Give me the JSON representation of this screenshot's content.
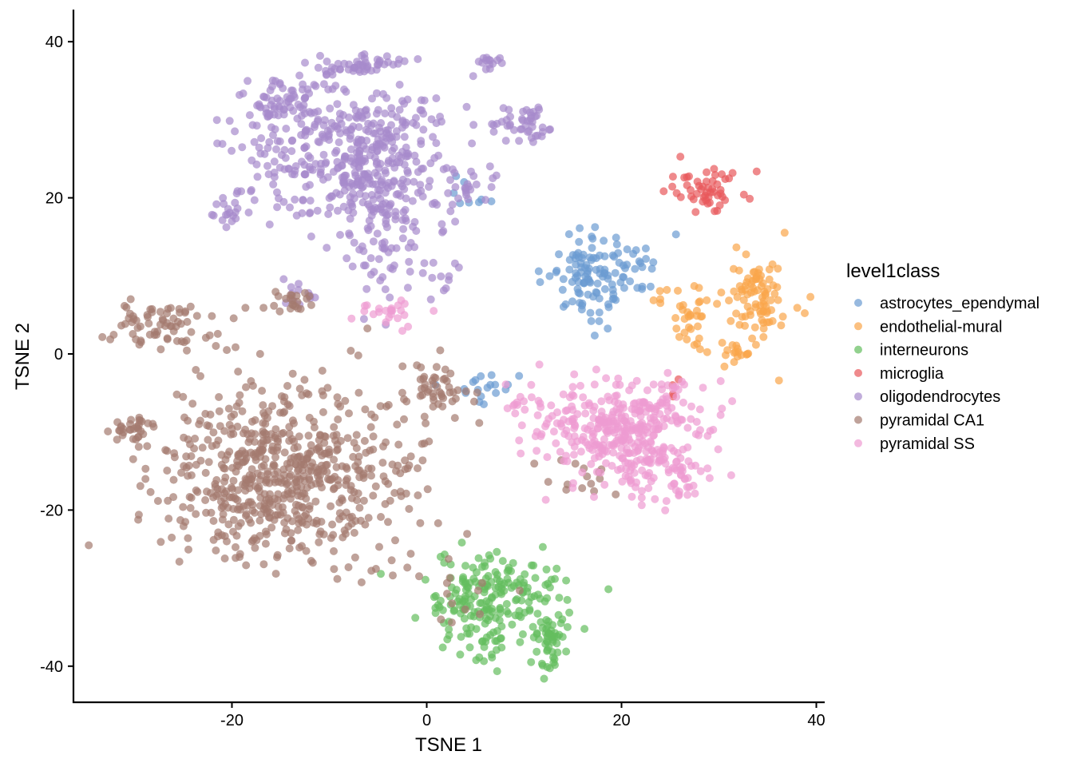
{
  "chart_data": {
    "type": "scatter",
    "xlabel": "TSNE 1",
    "ylabel": "TSNE 2",
    "xlim": [
      -36.5,
      40.5
    ],
    "ylim": [
      -44.5,
      44
    ],
    "x_ticks": [
      -20,
      0,
      20,
      40
    ],
    "y_ticks": [
      -40,
      -20,
      0,
      20,
      40
    ],
    "grid": false,
    "legend": {
      "title": "level1class",
      "placement": "right",
      "entries": [
        "astrocytes_ependymal",
        "endothelial-mural",
        "interneurons",
        "microglia",
        "oligodendrocytes",
        "pyramidal CA1",
        "pyramidal SS"
      ]
    },
    "colors": {
      "astrocytes_ependymal": "#6b9bd1",
      "endothelial-mural": "#f9a54a",
      "interneurons": "#64bd5e",
      "microglia": "#e8595b",
      "oligodendrocytes": "#a78acc",
      "pyramidal CA1": "#a47b6f",
      "pyramidal SS": "#ee9bd2"
    },
    "point_alpha": 0.7,
    "series": [
      {
        "name": "astrocytes_ependymal",
        "clusters": [
          {
            "cx": 17,
            "cy": 9.5,
            "sx": 2.6,
            "sy": 3.2,
            "n": 110
          },
          {
            "cx": 22,
            "cy": 11.5,
            "sx": 1.5,
            "sy": 2.2,
            "n": 14
          },
          {
            "cx": 6,
            "cy": -4.5,
            "sx": 2.6,
            "sy": 1.4,
            "n": 18
          },
          {
            "cx": 4.5,
            "cy": 20,
            "sx": 1.4,
            "sy": 2.0,
            "n": 8
          }
        ]
      },
      {
        "name": "endothelial-mural",
        "clusters": [
          {
            "cx": 34,
            "cy": 7.5,
            "sx": 1.9,
            "sy": 3.5,
            "n": 90
          },
          {
            "cx": 27.5,
            "cy": 4.5,
            "sx": 0.9,
            "sy": 2.4,
            "n": 28
          },
          {
            "cx": 32,
            "cy": 0,
            "sx": 0.9,
            "sy": 0.8,
            "n": 14
          },
          {
            "cx": 24.5,
            "cy": 6.5,
            "sx": 1.2,
            "sy": 1.2,
            "n": 8
          }
        ]
      },
      {
        "name": "interneurons",
        "clusters": [
          {
            "cx": 6.5,
            "cy": -32,
            "sx": 4.2,
            "sy": 3.8,
            "n": 215
          },
          {
            "cx": 12.5,
            "cy": -36.5,
            "sx": 1.0,
            "sy": 2.0,
            "n": 45
          }
        ]
      },
      {
        "name": "microglia",
        "clusters": [
          {
            "cx": 29,
            "cy": 21,
            "sx": 2.6,
            "sy": 1.6,
            "n": 52
          },
          {
            "cx": 26,
            "cy": -4,
            "sx": 1.2,
            "sy": 1.2,
            "n": 4
          }
        ]
      },
      {
        "name": "oligodendrocytes",
        "clusters": [
          {
            "cx": -8,
            "cy": 26,
            "sx": 6.0,
            "sy": 5.5,
            "n": 380
          },
          {
            "cx": -4.5,
            "cy": 18,
            "sx": 3.0,
            "sy": 6.0,
            "n": 120
          },
          {
            "cx": -15,
            "cy": 32,
            "sx": 2.3,
            "sy": 2.2,
            "n": 60
          },
          {
            "cx": -6.5,
            "cy": 37,
            "sx": 2.5,
            "sy": 0.8,
            "n": 45
          },
          {
            "cx": 10,
            "cy": 29.5,
            "sx": 2.0,
            "sy": 1.6,
            "n": 45
          },
          {
            "cx": 6.5,
            "cy": 37.5,
            "sx": 0.7,
            "sy": 0.6,
            "n": 14
          },
          {
            "cx": -20,
            "cy": 18.5,
            "sx": 1.1,
            "sy": 1.6,
            "n": 22
          },
          {
            "cx": 3.5,
            "cy": 20.5,
            "sx": 2.0,
            "sy": 1.7,
            "n": 25
          },
          {
            "cx": -13,
            "cy": 7.8,
            "sx": 1.6,
            "sy": 1.4,
            "n": 12
          },
          {
            "cx": 1,
            "cy": 10.5,
            "sx": 1.4,
            "sy": 2.0,
            "n": 12
          }
        ]
      },
      {
        "name": "pyramidal CA1",
        "clusters": [
          {
            "cx": -15,
            "cy": -15,
            "sx": 7.5,
            "sy": 6.5,
            "n": 640
          },
          {
            "cx": -27,
            "cy": 3.5,
            "sx": 2.8,
            "sy": 1.7,
            "n": 70
          },
          {
            "cx": -30.5,
            "cy": -9.5,
            "sx": 1.1,
            "sy": 1.3,
            "n": 30
          },
          {
            "cx": -14,
            "cy": 6.5,
            "sx": 1.8,
            "sy": 0.9,
            "n": 22
          },
          {
            "cx": 1,
            "cy": -4.5,
            "sx": 2.2,
            "sy": 2.6,
            "n": 48
          },
          {
            "cx": 15,
            "cy": -16,
            "sx": 2.0,
            "sy": 1.5,
            "n": 15
          },
          {
            "cx": 3,
            "cy": -30,
            "sx": 3.0,
            "sy": 3.5,
            "n": 16
          },
          {
            "cx": -2.5,
            "cy": -18,
            "sx": 0.4,
            "sy": 0.4,
            "n": 3
          }
        ]
      },
      {
        "name": "pyramidal SS",
        "clusters": [
          {
            "cx": 20,
            "cy": -10,
            "sx": 4.8,
            "sy": 3.6,
            "n": 340
          },
          {
            "cx": 24.5,
            "cy": -15.5,
            "sx": 2.8,
            "sy": 2.2,
            "n": 70
          },
          {
            "cx": -3.5,
            "cy": 5.5,
            "sx": 2.0,
            "sy": 1.3,
            "n": 24
          },
          {
            "cx": 9.5,
            "cy": -6.5,
            "sx": 1.5,
            "sy": 0.6,
            "n": 10
          },
          {
            "cx": 26,
            "cy": -6,
            "sx": 1.6,
            "sy": 1.6,
            "n": 12
          }
        ]
      }
    ]
  }
}
